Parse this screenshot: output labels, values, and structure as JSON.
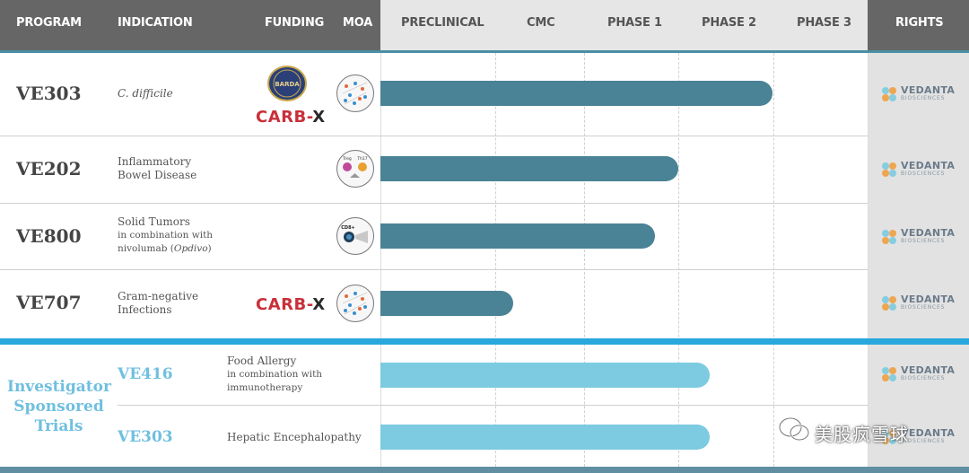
{
  "header": {
    "program": "PROGRAM",
    "indication": "INDICATION",
    "funding": "FUNDING",
    "moa": "MOA",
    "preclinical": "PRECLINICAL",
    "cmc": "CMC",
    "phase1": "PHASE 1",
    "phase2": "PHASE 2",
    "phase3": "PHASE 3",
    "rights": "RIGHTS"
  },
  "rows": [
    {
      "program": "VE303",
      "indication_line1": "C. difficile",
      "funding": [
        "BARDA",
        "CARB-X"
      ],
      "progress": "Phase 2",
      "rights": "VEDANTA BIOSCIENCES"
    },
    {
      "program": "VE202",
      "indication_line1": "Inflammatory",
      "indication_line2": "Bowel Disease",
      "progress": "Phase 1",
      "rights": "VEDANTA BIOSCIENCES"
    },
    {
      "program": "VE800",
      "indication_line1": "Solid Tumors",
      "indication_line2": "in combination with",
      "indication_line3a": "nivolumab (",
      "indication_line3b": "Opdivo",
      "indication_line3c": ")",
      "progress": "Phase 1",
      "rights": "VEDANTA BIOSCIENCES"
    },
    {
      "program": "VE707",
      "indication_line1": "Gram-negative",
      "indication_line2": "Infections",
      "funding": [
        "CARB-X"
      ],
      "progress": "CMC",
      "rights": "VEDANTA BIOSCIENCES"
    }
  ],
  "investigator": {
    "label_line1": "Investigator",
    "label_line2": "Sponsored",
    "label_line3": "Trials",
    "rows": [
      {
        "program": "VE416",
        "indication_line1": "Food Allergy",
        "indication_line2": "in combination with",
        "indication_line3": "immunotherapy",
        "progress": "Phase 2",
        "rights": "VEDANTA BIOSCIENCES"
      },
      {
        "program": "VE303",
        "indication_line1": "Hepatic Encephalopathy",
        "progress": "Phase 2",
        "rights": "VEDANTA BIOSCIENCES"
      }
    ]
  },
  "funding_labels": {
    "carbx_red": "CARB-",
    "carbx_black": "X",
    "barda": "BARDA"
  },
  "logo": {
    "name": "VEDANTA",
    "sub": "BIOSCIENCES"
  },
  "moa_labels": {
    "ve202_left": "Treg",
    "ve202_right": "Th17",
    "ve800": "CD8+"
  },
  "watermark": "美股疯雪球",
  "colors": {
    "dark_bar": "#4a8296",
    "light_bar": "#7ccbe0",
    "section_rule": "#29a8dd",
    "header_gray": "#666666",
    "carb_red": "#c8303a"
  }
}
